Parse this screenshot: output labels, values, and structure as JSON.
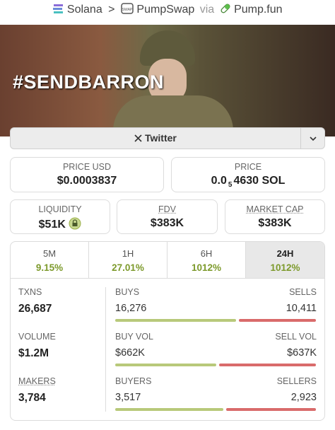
{
  "breadcrumb": {
    "chain": "Solana",
    "separator": ">",
    "dex": "PumpSwap",
    "via": "via",
    "launchpad": "Pump.fun"
  },
  "banner": {
    "text": "#SENDBARRON"
  },
  "social": {
    "label": "Twitter"
  },
  "price_usd": {
    "label": "PRICE USD",
    "value": "$0.0003837"
  },
  "price": {
    "label": "PRICE",
    "prefix": "0.0",
    "subscript": "5",
    "suffix": "4630 SOL"
  },
  "liquidity": {
    "label": "LIQUIDITY",
    "value": "$51K"
  },
  "fdv": {
    "label": "FDV",
    "value": "$383K"
  },
  "market_cap": {
    "label": "MARKET CAP",
    "value": "$383K"
  },
  "timeframes": {
    "active": 3,
    "items": [
      {
        "label": "5M",
        "change": "9.15%"
      },
      {
        "label": "1H",
        "change": "27.01%"
      },
      {
        "label": "6H",
        "change": "1012%"
      },
      {
        "label": "24H",
        "change": "1012%"
      }
    ]
  },
  "stats": [
    {
      "label": "TXNS",
      "value": "26,687",
      "left": {
        "label": "BUYS",
        "value": 16276,
        "text": "16,276"
      },
      "right": {
        "label": "SELLS",
        "value": 10411,
        "text": "10,411"
      }
    },
    {
      "label": "VOLUME",
      "value": "$1.2M",
      "left": {
        "label": "BUY VOL",
        "value": 662000,
        "text": "$662K"
      },
      "right": {
        "label": "SELL VOL",
        "value": 637000,
        "text": "$637K"
      }
    },
    {
      "label": "MAKERS",
      "value": "3,784",
      "left": {
        "label": "BUYERS",
        "value": 3517,
        "text": "3,517"
      },
      "right": {
        "label": "SELLERS",
        "value": 2923,
        "text": "2,923"
      }
    }
  ]
}
